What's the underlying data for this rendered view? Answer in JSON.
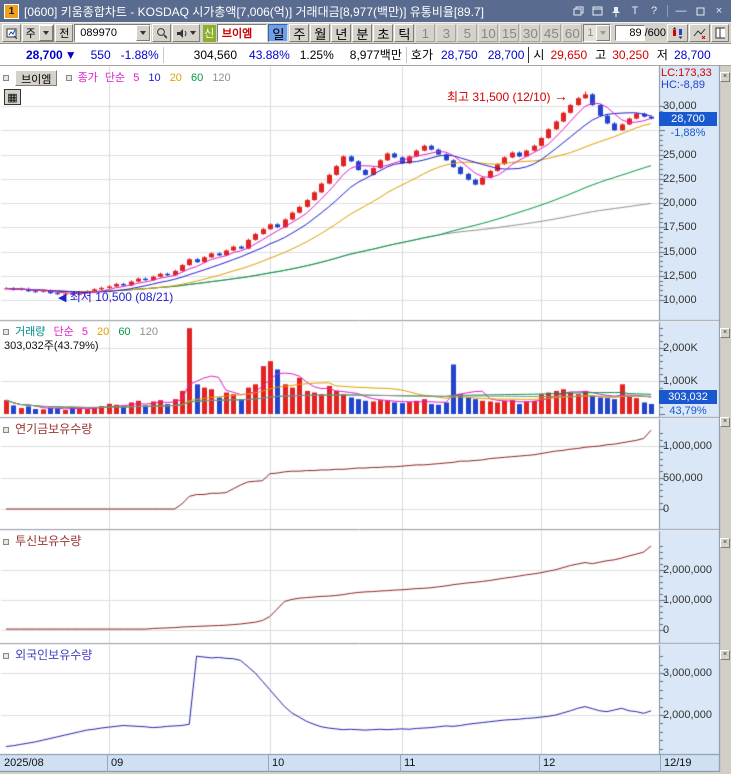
{
  "window": {
    "badge": "1",
    "title": "[0600] 키움종합차트 - KOSDAQ 시가총액[7,006(억)] 거래대금[8,977(백만)] 유통비율[89.7]"
  },
  "toolbar": {
    "period_combo": "주",
    "jeon_button": "전",
    "code_input": "089970",
    "new_badge": "신",
    "stock_name": "브이엠",
    "timeframes": [
      "일",
      "주",
      "월",
      "년",
      "분",
      "초",
      "틱"
    ],
    "minute_options": [
      "1",
      "3",
      "5",
      "10",
      "15",
      "30",
      "45",
      "60"
    ],
    "minute_combo": "1",
    "bar_count": "89",
    "bar_total": "/600"
  },
  "quote": {
    "price": "28,700",
    "direction": "▼",
    "change": "550",
    "change_pct": "-1.88%",
    "volume": "304,560",
    "volume_ratio": "43.88%",
    "turnover": "1.25%",
    "amount": "8,977백만",
    "hoga_label": "호가",
    "ask": "28,750",
    "bid": "28,700",
    "open_label": "시",
    "open": "29,650",
    "high_label": "고",
    "high": "30,250",
    "low_label": "저",
    "low": "28,700"
  },
  "main_pane": {
    "stock_button": "브이엠",
    "legend": {
      "name": "종가",
      "type": "단순",
      "p": [
        "5",
        "10",
        "20",
        "60",
        "120"
      ]
    },
    "lc": "LC:173,33",
    "hc": "HC:-8,89",
    "price_box": "28,700",
    "pct_box": "-1,88%",
    "high_annotation": "최고 31,500 (12/10)",
    "high_arrow": "→",
    "low_annotation": "최저 10,500 (08/21)",
    "low_arrow": "◀",
    "yticks": [
      {
        "v": 30000,
        "t": "30,000"
      },
      {
        "v": 25000,
        "t": "25,000"
      },
      {
        "v": 22500,
        "t": "22,500"
      },
      {
        "v": 20000,
        "t": "20,000"
      },
      {
        "v": 17500,
        "t": "17,500"
      },
      {
        "v": 15000,
        "t": "15,000"
      },
      {
        "v": 12500,
        "t": "12,500"
      },
      {
        "v": 10000,
        "t": "10,000"
      }
    ]
  },
  "volume_pane": {
    "legend": {
      "name": "거래량",
      "type": "단순",
      "p": [
        "5",
        "20",
        "60",
        "120"
      ]
    },
    "stat": "303,032주(43.79%)",
    "value_box": "303,032",
    "pct_box": "43,79%",
    "yticks": [
      {
        "v": 2000000,
        "t": "2,000K"
      },
      {
        "v": 1000000,
        "t": "1,000K"
      }
    ]
  },
  "pension_pane": {
    "title": "연기금보유수량",
    "yticks": [
      {
        "v": 1000000,
        "t": "1,000,000"
      },
      {
        "v": 500000,
        "t": "500,000"
      },
      {
        "v": 0,
        "t": "0"
      }
    ]
  },
  "trust_pane": {
    "title": "투신보유수량",
    "yticks": [
      {
        "v": 2000000,
        "t": "2,000,000"
      },
      {
        "v": 1000000,
        "t": "1,000,000"
      },
      {
        "v": 0,
        "t": "0"
      }
    ]
  },
  "foreign_pane": {
    "title": "외국인보유수량",
    "yticks": [
      {
        "v": 3000000,
        "t": "3,000,000"
      },
      {
        "v": 2000000,
        "t": "2,000,000"
      }
    ]
  },
  "chart_data": {
    "type": "candlestick",
    "months": [
      {
        "t": "2025/08",
        "i": 0
      },
      {
        "t": "09",
        "i": 14
      },
      {
        "t": "10",
        "i": 36
      },
      {
        "t": "11",
        "i": 54
      },
      {
        "t": "12",
        "i": 73
      }
    ],
    "last_date": "12/19",
    "extreme_high": {
      "index": 79,
      "value": 31500,
      "date": "12/10"
    },
    "extreme_low": {
      "index": 9,
      "value": 10500,
      "date": "08/21"
    },
    "ylim": [
      9500,
      31500
    ],
    "closes": [
      11200,
      11050,
      11150,
      10900,
      10850,
      10950,
      10700,
      10600,
      10650,
      10550,
      10750,
      10900,
      11100,
      11250,
      11400,
      11650,
      11500,
      11900,
      12200,
      12050,
      12400,
      12700,
      12550,
      13000,
      13600,
      14200,
      13900,
      14400,
      14800,
      14600,
      15100,
      15500,
      15300,
      16200,
      16800,
      17300,
      17800,
      17500,
      18300,
      19000,
      19600,
      20300,
      21100,
      22000,
      22900,
      23800,
      24800,
      24300,
      23400,
      22900,
      23600,
      24400,
      25100,
      24700,
      24100,
      24800,
      25400,
      25900,
      25500,
      25000,
      24400,
      23700,
      23000,
      22400,
      21900,
      22600,
      23300,
      24000,
      24700,
      25200,
      24800,
      25400,
      25900,
      26700,
      27600,
      28400,
      29300,
      30100,
      30800,
      31200,
      30100,
      29000,
      28200,
      27500,
      28100,
      28700,
      29200,
      28900,
      28700
    ],
    "volumes": [
      420000,
      260000,
      180000,
      230000,
      150000,
      140000,
      190000,
      170000,
      120000,
      200000,
      160000,
      150000,
      210000,
      240000,
      310000,
      280000,
      220000,
      350000,
      400000,
      260000,
      380000,
      420000,
      300000,
      450000,
      700000,
      2600000,
      900000,
      800000,
      750000,
      500000,
      650000,
      600000,
      450000,
      800000,
      900000,
      1450000,
      1600000,
      1350000,
      900000,
      800000,
      1100000,
      700000,
      650000,
      600000,
      850000,
      700000,
      600000,
      500000,
      450000,
      400000,
      380000,
      420000,
      400000,
      350000,
      330000,
      360000,
      400000,
      450000,
      300000,
      280000,
      350000,
      1500000,
      600000,
      500000,
      450000,
      400000,
      380000,
      350000,
      400000,
      420000,
      300000,
      380000,
      400000,
      600000,
      650000,
      700000,
      750000,
      650000,
      600000,
      700000,
      550000,
      500000,
      480000,
      450000,
      900000,
      520000,
      480000,
      350000,
      303032
    ],
    "pension": [
      0,
      0,
      0,
      0,
      0,
      0,
      0,
      0,
      0,
      0,
      0,
      0,
      0,
      0,
      0,
      0,
      0,
      0,
      0,
      0,
      0,
      0,
      0,
      0,
      80000,
      200000,
      230000,
      230000,
      250000,
      250000,
      260000,
      320000,
      380000,
      430000,
      440000,
      450000,
      560000,
      570000,
      590000,
      600000,
      600000,
      610000,
      610000,
      620000,
      620000,
      630000,
      630000,
      640000,
      650000,
      650000,
      660000,
      660000,
      670000,
      670000,
      680000,
      690000,
      700000,
      700000,
      710000,
      720000,
      730000,
      740000,
      760000,
      760000,
      770000,
      780000,
      800000,
      810000,
      820000,
      830000,
      840000,
      850000,
      860000,
      880000,
      900000,
      920000,
      930000,
      950000,
      960000,
      980000,
      990000,
      1000000,
      1020000,
      1030000,
      1050000,
      1070000,
      1090000,
      1120000,
      1250000
    ],
    "trust": [
      30000,
      30000,
      30000,
      30000,
      30000,
      30000,
      30000,
      30000,
      30000,
      30000,
      30000,
      30000,
      30000,
      30000,
      30000,
      30000,
      30000,
      30000,
      30000,
      30000,
      50000,
      60000,
      70000,
      80000,
      100000,
      110000,
      120000,
      130000,
      140000,
      150000,
      160000,
      180000,
      200000,
      230000,
      260000,
      320000,
      450000,
      700000,
      950000,
      1020000,
      1060000,
      1080000,
      1100000,
      1120000,
      1130000,
      1150000,
      1180000,
      1220000,
      1250000,
      1270000,
      1280000,
      1300000,
      1310000,
      1330000,
      1340000,
      1360000,
      1380000,
      1390000,
      1410000,
      1440000,
      1470000,
      1510000,
      1540000,
      1570000,
      1590000,
      1620000,
      1650000,
      1690000,
      1730000,
      1760000,
      1800000,
      1840000,
      1870000,
      1910000,
      1960000,
      2010000,
      2080000,
      2150000,
      2200000,
      2250000,
      2210000,
      2260000,
      2310000,
      2340000,
      2400000,
      2470000,
      2530000,
      2600000,
      2800000
    ],
    "foreign": [
      1250000,
      1270000,
      1300000,
      1330000,
      1360000,
      1400000,
      1440000,
      1480000,
      1520000,
      1560000,
      1600000,
      1640000,
      1660000,
      1690000,
      1710000,
      1730000,
      1750000,
      1740000,
      1730000,
      1720000,
      1700000,
      1710000,
      1730000,
      1740000,
      1750000,
      1780000,
      3400000,
      3380000,
      3360000,
      3370000,
      3350000,
      3340000,
      3300000,
      3150000,
      3000000,
      2800000,
      2600000,
      2400000,
      2200000,
      2050000,
      1950000,
      1850000,
      1780000,
      1720000,
      1690000,
      1670000,
      1650000,
      1660000,
      1650000,
      1640000,
      1650000,
      1660000,
      1650000,
      1660000,
      1670000,
      1660000,
      1680000,
      1690000,
      1700000,
      1720000,
      1740000,
      1730000,
      1750000,
      1780000,
      1800000,
      1820000,
      1840000,
      1860000,
      1880000,
      1890000,
      1900000,
      1920000,
      1930000,
      1950000,
      1970000,
      2000000,
      2050000,
      2100000,
      2160000,
      2200000,
      2150000,
      2100000,
      2080000,
      2120000,
      2160000,
      2100000,
      2080000,
      2040000,
      2100000
    ],
    "ma_periods_price": [
      5,
      10,
      20,
      60,
      120
    ],
    "ma_periods_volume": [
      5,
      20,
      60,
      120
    ],
    "ma_colors": {
      "5": "#e020c8",
      "10": "#2020cc",
      "20": "#e0a000",
      "60": "#009944",
      "120": "#909090"
    },
    "up_color": "#e32222",
    "down_color": "#2244cc",
    "pension_color": "#8b2222",
    "trust_color": "#8b2222",
    "foreign_color": "#2222aa"
  }
}
